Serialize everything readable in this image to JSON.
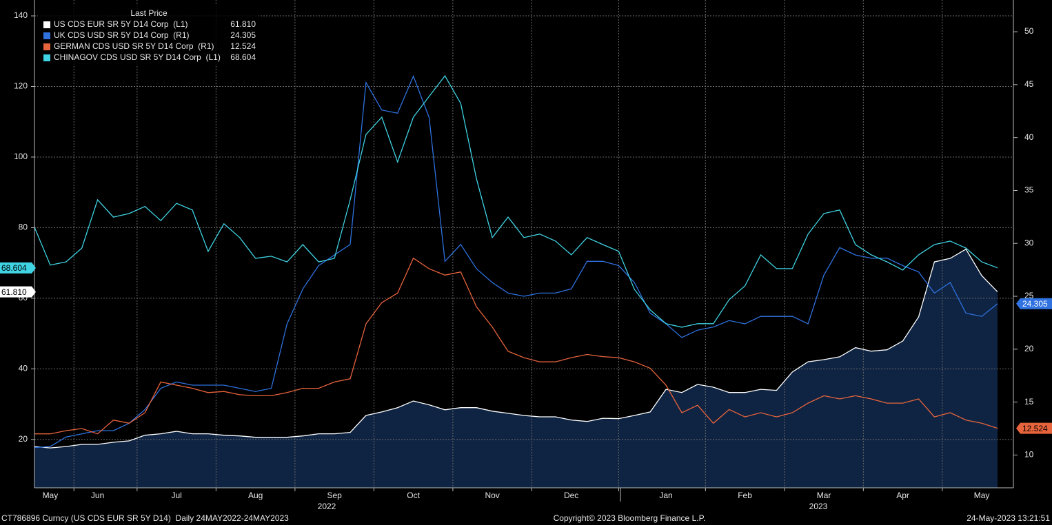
{
  "chart_data": {
    "type": "line",
    "legend_title": "Last Price",
    "categories": [
      null,
      "May",
      null,
      null,
      "Jun",
      null,
      null,
      null,
      null,
      "Jul",
      null,
      null,
      null,
      null,
      "Aug",
      null,
      null,
      null,
      null,
      "Sep",
      null,
      null,
      null,
      null,
      "Oct",
      null,
      null,
      null,
      null,
      "Nov",
      null,
      null,
      null,
      null,
      "Dec",
      null,
      null,
      null,
      null,
      null,
      "Jan",
      null,
      null,
      null,
      null,
      "Feb",
      null,
      null,
      null,
      null,
      "Mar",
      null,
      null,
      null,
      null,
      "Apr",
      null,
      null,
      null,
      null,
      "May",
      null
    ],
    "x_years": [
      "2022",
      "2023"
    ],
    "ylim": [
      6.3,
      144.5
    ],
    "yticks": [
      20,
      40,
      60,
      80,
      100,
      120,
      140
    ],
    "y2lim": [
      6.9,
      53.0
    ],
    "y2ticks": [
      10,
      15,
      20,
      25,
      30,
      35,
      40,
      45,
      50
    ],
    "grid": true,
    "series": [
      {
        "name": "US CDS EUR SR 5Y D14 Corp  (L1)",
        "color": "#ffffff",
        "axis": "y",
        "area": true,
        "last_price": "61.810",
        "values": [
          18.0,
          17.6,
          18,
          18.6,
          18.6,
          19.2,
          19.6,
          21.2,
          21.6,
          22.3,
          21.6,
          21.6,
          21.2,
          21,
          20.6,
          20.6,
          20.6,
          21,
          21.6,
          21.6,
          22,
          26.8,
          27.8,
          29,
          30.9,
          29.8,
          28.4,
          29,
          29,
          28,
          27.4,
          26.8,
          26.4,
          26.4,
          25.5,
          25.1,
          26,
          25.9,
          26.8,
          27.8,
          34.2,
          33.3,
          35.6,
          34.8,
          33.3,
          33.3,
          34.2,
          33.9,
          39.1,
          42.0,
          42.6,
          43.4,
          46.0,
          45,
          45.4,
          47.9,
          54.7,
          70.3,
          71.3,
          73.9,
          66.4,
          61.81
        ]
      },
      {
        "name": "UK CDS USD SR 5Y D14 Corp  (R1)",
        "color": "#2f72e0",
        "axis": "y2",
        "last_price": "24.305",
        "values": [
          10.7,
          10.8,
          11.7,
          12.0,
          12.3,
          12.3,
          13.0,
          14.3,
          16.3,
          16.9,
          16.6,
          16.6,
          16.6,
          16.3,
          16.0,
          16.3,
          22.4,
          25.7,
          27.9,
          28.9,
          29.9,
          45.2,
          42.6,
          42.3,
          45.8,
          41.9,
          28.3,
          29.9,
          27.6,
          26.3,
          25.3,
          25.0,
          25.3,
          25.3,
          25.7,
          28.3,
          28.3,
          27.9,
          26.3,
          23.4,
          22.4,
          21.1,
          21.8,
          22.1,
          22.7,
          22.4,
          23.1,
          23.1,
          23.1,
          22.4,
          27.0,
          29.6,
          28.9,
          28.6,
          28.6,
          27.9,
          27.3,
          25.3,
          26.3,
          23.4,
          23.1,
          24.305
        ]
      },
      {
        "name": "GERMAN CDS USD SR 5Y D14 Corp  (R1)",
        "color": "#e8643c",
        "axis": "y2",
        "last_price": "12.524",
        "values": [
          12.0,
          12.0,
          12.3,
          12.5,
          12.0,
          13.3,
          13.0,
          14.0,
          16.9,
          16.6,
          16.3,
          15.9,
          16.0,
          15.7,
          15.6,
          15.6,
          15.9,
          16.3,
          16.3,
          16.9,
          17.2,
          22.4,
          24.4,
          25.3,
          28.6,
          27.6,
          27.0,
          27.3,
          24.0,
          22.1,
          19.8,
          19.2,
          18.8,
          18.8,
          19.2,
          19.5,
          19.3,
          19.2,
          18.8,
          18.2,
          16.6,
          14.0,
          14.7,
          13.0,
          14.3,
          13.6,
          14.0,
          13.6,
          14.0,
          14.9,
          15.6,
          15.3,
          15.6,
          15.3,
          14.9,
          14.9,
          15.3,
          13.6,
          14.0,
          13.3,
          13.0,
          12.524
        ]
      },
      {
        "name": "CHINAGOV CDS USD SR 5Y D14 Corp  (L1)",
        "color": "#3fd3e3",
        "axis": "y",
        "last_price": "68.604",
        "values": [
          80.1,
          69.4,
          70.3,
          74.2,
          87.9,
          83,
          84,
          86,
          82,
          86.9,
          85,
          73.3,
          81.1,
          77.2,
          71.3,
          71.9,
          70.3,
          75.2,
          70.3,
          71.3,
          87.9,
          106.4,
          111.3,
          98.6,
          111.3,
          117.2,
          123,
          115.2,
          93.8,
          77.2,
          83,
          77.2,
          78.2,
          76.2,
          72.3,
          77.2,
          75.2,
          73.3,
          62.5,
          56.7,
          52.8,
          51.8,
          52.8,
          52.8,
          59.6,
          63.5,
          72.3,
          68.4,
          68.4,
          78.2,
          84,
          85,
          75.2,
          72.3,
          70.3,
          68,
          72.3,
          75.2,
          76.2,
          74.2,
          70.3,
          68.604
        ]
      }
    ],
    "footer_left": "CT786896 Curncy (US CDS EUR SR 5Y D14)  Daily 24MAY2022-24MAY2023",
    "footer_center": "Copyright© 2023 Bloomberg Finance L.P.",
    "footer_right": "24-May-2023 13:21:51"
  }
}
